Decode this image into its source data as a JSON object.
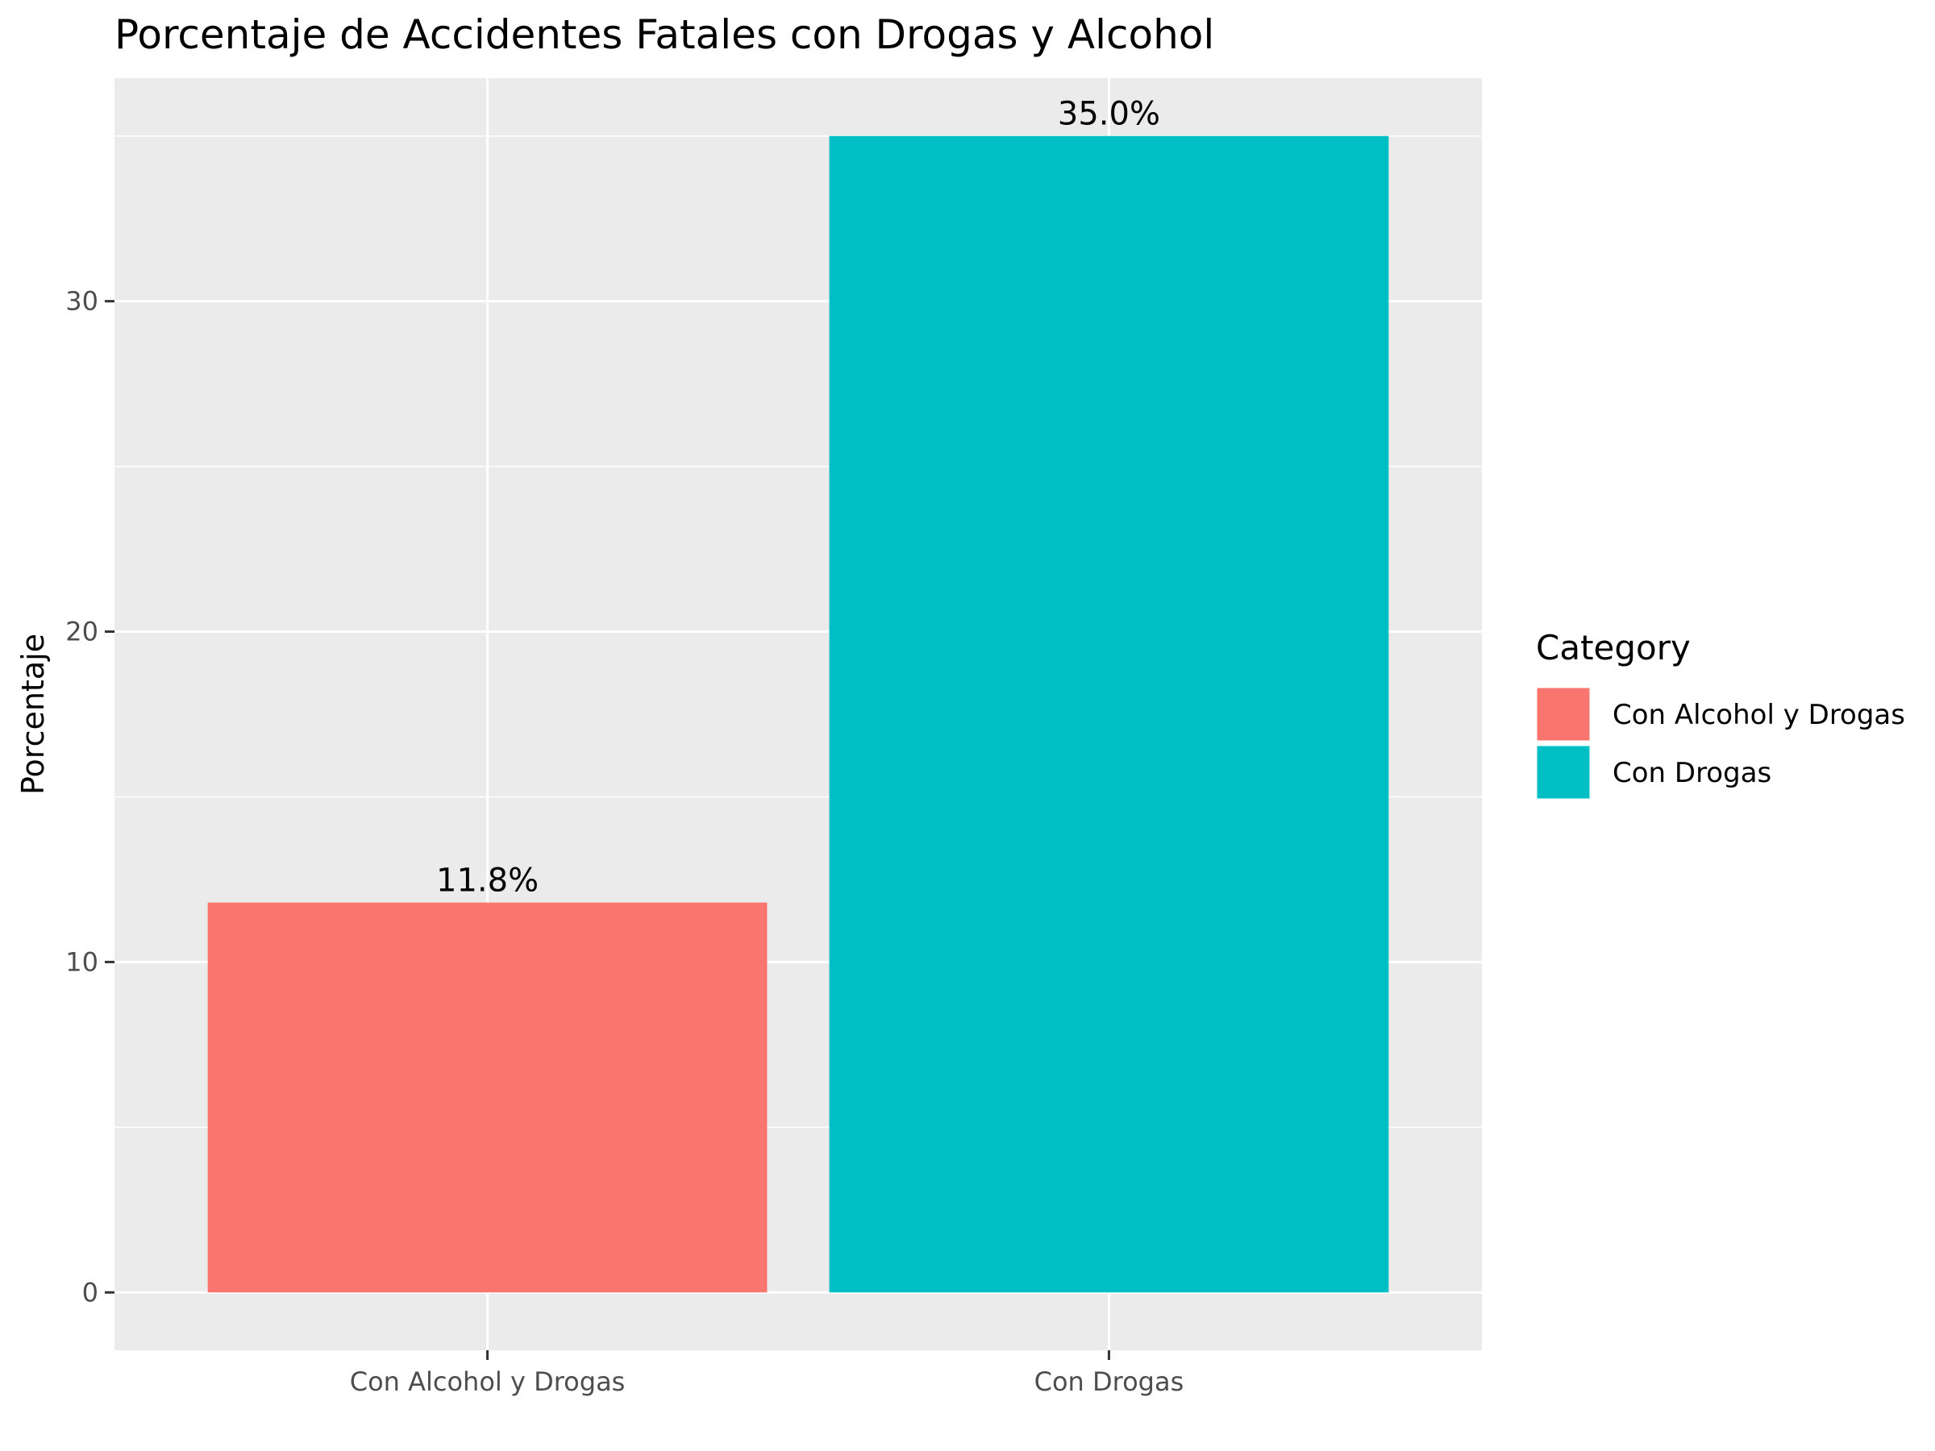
{
  "chart_data": {
    "type": "bar",
    "title": "Porcentaje de Accidentes Fatales con Drogas y Alcohol",
    "xlabel": "",
    "ylabel": "Porcentaje",
    "categories": [
      "Con Alcohol y Drogas",
      "Con Drogas"
    ],
    "values": [
      11.8,
      35.0
    ],
    "data_labels": [
      "11.8%",
      "35.0%"
    ],
    "colors": [
      "#F8766D",
      "#00BFC4"
    ],
    "ylim": [
      -1.75,
      36.75
    ],
    "yticks": [
      0,
      10,
      20,
      30
    ],
    "ytick_labels": [
      "0",
      "10",
      "20",
      "30"
    ],
    "grid": true,
    "panel_background": "#EBEBEB",
    "legend": {
      "title": "Category",
      "position": "right",
      "entries": [
        "Con Alcohol y Drogas",
        "Con Drogas"
      ]
    }
  }
}
